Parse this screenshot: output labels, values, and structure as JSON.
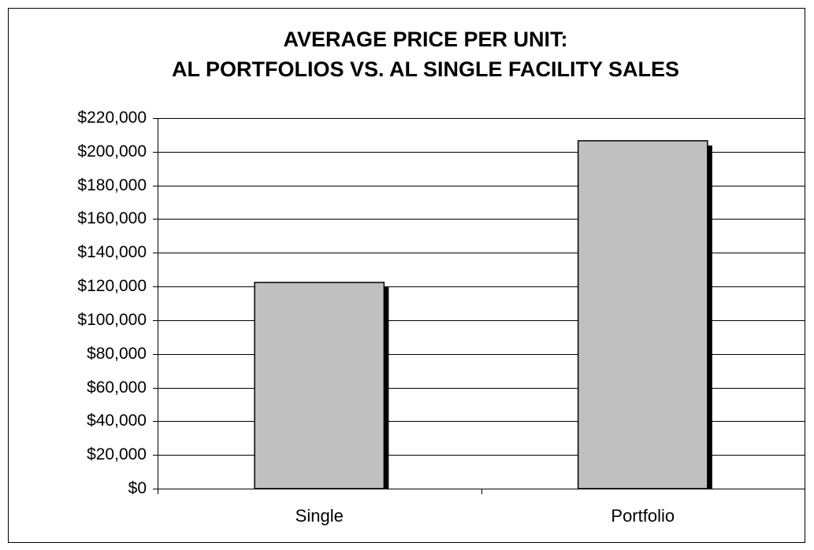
{
  "chart_data": {
    "type": "bar",
    "title": [
      "AVERAGE PRICE PER UNIT:",
      "AL PORTFOLIOS VS. AL SINGLE FACILITY SALES"
    ],
    "categories": [
      "Single",
      "Portfolio"
    ],
    "values": [
      122400,
      206500
    ],
    "color": "#c0c0c0",
    "ylim": [
      0,
      220000
    ],
    "yticks": [
      {
        "value": 0,
        "label": "$0"
      },
      {
        "value": 20000,
        "label": "$20,000"
      },
      {
        "value": 40000,
        "label": "$40,000"
      },
      {
        "value": 60000,
        "label": "$60,000"
      },
      {
        "value": 80000,
        "label": "$80,000"
      },
      {
        "value": 100000,
        "label": "$100,000"
      },
      {
        "value": 120000,
        "label": "$120,000"
      },
      {
        "value": 140000,
        "label": "$140,000"
      },
      {
        "value": 160000,
        "label": "$160,000"
      },
      {
        "value": 180000,
        "label": "$180,000"
      },
      {
        "value": 200000,
        "label": "$200,000"
      },
      {
        "value": 220000,
        "label": "$220,000"
      }
    ],
    "grid": true
  }
}
